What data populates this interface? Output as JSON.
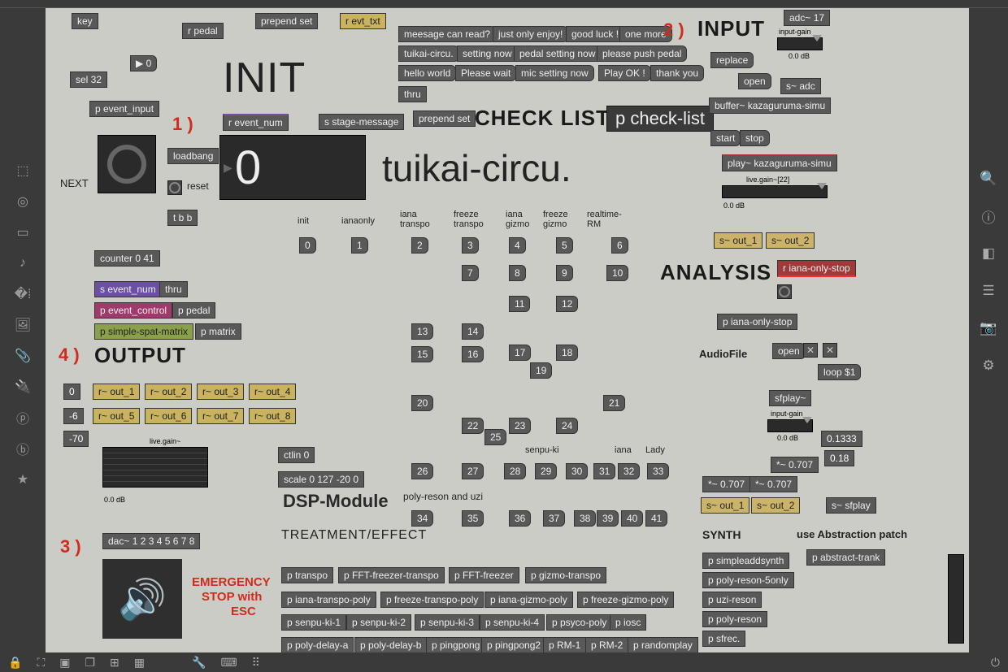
{
  "titles": {
    "init": "INIT",
    "input": "INPUT",
    "checklist": "CHECK LIST",
    "analysis": "ANALYSIS",
    "output": "OUTPUT",
    "dsp": "DSP-Module",
    "treatment": "TREATMENT/EFFECT",
    "synth": "SYNTH",
    "abstraction": "use Abstraction patch",
    "tuikai": "tuikai-circu.",
    "next": "NEXT",
    "audiofile": "AudioFile",
    "polyreson": "poly-reson and uzi",
    "emergency1": "EMERGENCY",
    "emergency2": "STOP with",
    "emergency3": "ESC"
  },
  "red_markers": {
    "m1": "1 )",
    "m2": "2 )",
    "m3": "3 )",
    "m4": "4 )"
  },
  "top_objects": {
    "key": "key",
    "rpedal": "r pedal",
    "prependset1": "prepend set",
    "revttxt": "r evt_txt",
    "sel32": "sel 32",
    "peventinput": "p event_input",
    "reventnum": "r event_num",
    "sstage": "s stage-message",
    "prependset2": "prepend set",
    "thru1": "thru",
    "loadbang": "loadbang",
    "reset": "reset",
    "tbb": "t b b",
    "numtop": "0"
  },
  "bignum": "0",
  "counter": "counter 0 41",
  "below_counter": {
    "seventnum": "s event_num",
    "thru2": "thru",
    "peventcontrol": "p event_control",
    "ppedal": "p pedal",
    "psimplespat": "p simple-spat-matrix",
    "pmatrix": "p matrix"
  },
  "messages": {
    "m1": "meesage can read?",
    "m2": "just only enjoy!",
    "m3": "good luck !",
    "m4": "one more",
    "m5": "tuikai-circu.",
    "m6": "setting now",
    "m7": "pedal setting now",
    "m8": "please push pedal",
    "m9": "hello world",
    "m10": "Please wait",
    "m11": "mic setting now",
    "m12": "Play OK !",
    "m13": "thank you"
  },
  "p_checklist": "p check-list",
  "input_block": {
    "adc": "adc~ 17",
    "inputgain": "input-gain",
    "db": "0.0 dB",
    "sadc": "s~ adc",
    "replace": "replace",
    "open": "open",
    "buffer": "buffer~ kazaguruma-simu",
    "start": "start",
    "stop": "stop",
    "play": "play~ kazaguruma-simu",
    "livegain": "live.gain~[22]",
    "db2": "0.0 dB",
    "sout1": "s~ out_1",
    "sout2": "s~ out_2"
  },
  "event_labels": {
    "init": "init",
    "ianaonly": "ianaonly",
    "ianatranspo1": "iana",
    "ianatranspo2": "transpo",
    "freezetranspo1": "freeze",
    "freezetranspo2": "transpo",
    "ianagizmo1": "iana",
    "ianagizmo2": "gizmo",
    "freezegizmo1": "freeze",
    "freezegizmo2": "gizmo",
    "realtime1": "realtime-",
    "realtime2": "RM",
    "senpuki": "senpu-ki",
    "iana": "iana",
    "lady": "Lady"
  },
  "event_numbers": [
    "0",
    "1",
    "2",
    "3",
    "4",
    "5",
    "6",
    "7",
    "8",
    "9",
    "10",
    "11",
    "12",
    "13",
    "14",
    "15",
    "16",
    "17",
    "18",
    "19",
    "20",
    "21",
    "22",
    "23",
    "24",
    "25",
    "26",
    "27",
    "28",
    "29",
    "30",
    "31",
    "32",
    "33",
    "34",
    "35",
    "36",
    "37",
    "38",
    "39",
    "40",
    "41"
  ],
  "analysis": {
    "rianaonlystop": "r iana-only-stop",
    "pianaonlystop": "p iana-only-stop",
    "open": "open",
    "loop": "loop $1",
    "sfplay": "sfplay~",
    "inputgain": "input-gain",
    "db": "0.0 dB",
    "mul1": "*~ 0.707",
    "mul2": "*~ 0.707",
    "mul3": "*~ 0.707",
    "n1": "0.1333",
    "n2": "0.18",
    "sout1": "s~ out_1",
    "sout2": "s~ out_2",
    "ssfplay": "s~ sfplay"
  },
  "output": {
    "n0": "0",
    "n6": "-6",
    "n70": "-70",
    "r1": "r~ out_1",
    "r2": "r~ out_2",
    "r3": "r~ out_3",
    "r4": "r~ out_4",
    "r5": "r~ out_5",
    "r6": "r~ out_6",
    "r7": "r~ out_7",
    "r8": "r~ out_8",
    "livegain": "live.gain~",
    "db": "0.0 dB",
    "dac": "dac~ 1 2 3 4 5 6 7 8",
    "ctlin": "ctlin 0",
    "scale": "scale 0 127 -20 0"
  },
  "treatment": [
    "p transpo",
    "p FFT-freezer-transpo",
    "p FFT-freezer",
    "p gizmo-transpo",
    "p iana-transpo-poly",
    "p freeze-transpo-poly",
    "p iana-gizmo-poly",
    "p freeze-gizmo-poly",
    "p senpu-ki-1",
    "p senpu-ki-2",
    "p senpu-ki-3",
    "p senpu-ki-4",
    "p psyco-poly",
    "p iosc",
    "p poly-delay-a",
    "p poly-delay-b",
    "p pingpong",
    "p pingpong2",
    "p RM-1",
    "p RM-2",
    "p randomplay"
  ],
  "synth": [
    "p simpleaddsynth",
    "p poly-reson-5only",
    "p uzi-reson",
    "p poly-reson",
    "p sfrec."
  ],
  "abstraction_patch": "p abstract-trank",
  "colors": {
    "obj": "#595959",
    "patcher_bg": "#ccccc6",
    "app_bg": "#2a2a2a",
    "red": "#d12b1f",
    "yellow": "#cbb36a",
    "purple": "#6a4fa3",
    "pink": "#a03a6a",
    "green": "#8aa04a"
  }
}
